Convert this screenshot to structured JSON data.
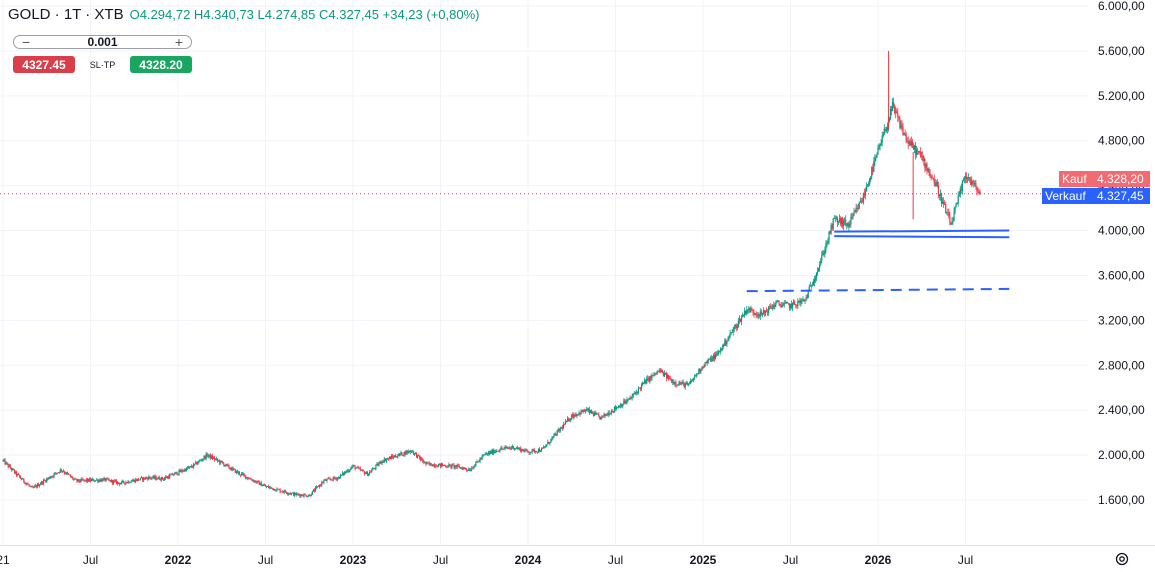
{
  "legend": {
    "symbol": "GOLD · 1T · XTB",
    "open": "O4.294,72",
    "high": "H4.340,73",
    "low": "L4.274,85",
    "close": "C4.327,45",
    "change": "+34,23 (+0,80%)"
  },
  "order_panel": {
    "quantity": "0.001",
    "minus": "−",
    "plus": "+",
    "sell_price": "4327.45",
    "sltp": "SL·TP",
    "buy_price": "4328.20"
  },
  "price_tags": {
    "buy_label": "Kauf",
    "buy_value": "4.328,20",
    "sell_label": "Verkauf",
    "sell_value": "4.327,45"
  },
  "colors": {
    "up": "#089981",
    "down": "#f23645",
    "trendline": "#2962ff",
    "buy_tag": "#f26b73",
    "sell_tag": "#2962ff",
    "grid": "#f0f3fa"
  },
  "icons": {
    "settings": "settings-gear-icon"
  },
  "chart_data": {
    "type": "candlestick",
    "symbol": "GOLD",
    "interval": "1T",
    "y_axis": {
      "side": "right",
      "ylim": [
        1200,
        6000
      ],
      "ticks": [
        1600,
        2000,
        2400,
        2800,
        3200,
        3600,
        4000,
        4400,
        4800,
        5200,
        5600,
        6000
      ],
      "tick_labels": [
        "1.600,00",
        "2.000,00",
        "2.400,00",
        "2.800,00",
        "3.200,00",
        "3.600,00",
        "4.000,00",
        "4.400,00",
        "4.800,00",
        "5.200,00",
        "5.600,00",
        "6.000,00"
      ]
    },
    "x_axis": {
      "ticks": [
        "2021-01",
        "2021-07",
        "2022-01",
        "2022-07",
        "2023-01",
        "2023-07",
        "2024-01",
        "2024-07",
        "2025-01",
        "2025-07",
        "2026-01",
        "2026-07"
      ],
      "tick_labels": [
        "21",
        "Jul",
        "2022",
        "Jul",
        "2023",
        "Jul",
        "2024",
        "Jul",
        "2025",
        "Jul",
        "2026",
        "Jul"
      ],
      "xlim": [
        "2021-01",
        "2027-02"
      ]
    },
    "grid": true,
    "price_path": [
      [
        "2021-01",
        1950
      ],
      [
        "2021-02",
        1820
      ],
      [
        "2021-03",
        1700
      ],
      [
        "2021-05",
        1870
      ],
      [
        "2021-06",
        1770
      ],
      [
        "2021-08",
        1780
      ],
      [
        "2021-09",
        1750
      ],
      [
        "2021-11",
        1800
      ],
      [
        "2021-12",
        1790
      ],
      [
        "2022-02",
        1900
      ],
      [
        "2022-03",
        2000
      ],
      [
        "2022-04",
        1930
      ],
      [
        "2022-05",
        1850
      ],
      [
        "2022-07",
        1720
      ],
      [
        "2022-09",
        1650
      ],
      [
        "2022-10",
        1640
      ],
      [
        "2022-11",
        1770
      ],
      [
        "2022-12",
        1800
      ],
      [
        "2023-01",
        1900
      ],
      [
        "2023-02",
        1830
      ],
      [
        "2023-03",
        1950
      ],
      [
        "2023-05",
        2040
      ],
      [
        "2023-06",
        1920
      ],
      [
        "2023-08",
        1900
      ],
      [
        "2023-09",
        1870
      ],
      [
        "2023-10",
        2000
      ],
      [
        "2023-11",
        2050
      ],
      [
        "2023-12",
        2070
      ],
      [
        "2024-01",
        2030
      ],
      [
        "2024-02",
        2050
      ],
      [
        "2024-03",
        2200
      ],
      [
        "2024-04",
        2350
      ],
      [
        "2024-05",
        2400
      ],
      [
        "2024-06",
        2330
      ],
      [
        "2024-07",
        2420
      ],
      [
        "2024-08",
        2500
      ],
      [
        "2024-09",
        2650
      ],
      [
        "2024-10",
        2750
      ],
      [
        "2024-11",
        2650
      ],
      [
        "2024-12",
        2620
      ],
      [
        "2025-01",
        2800
      ],
      [
        "2025-02",
        2900
      ],
      [
        "2025-03",
        3100
      ],
      [
        "2025-04",
        3300
      ],
      [
        "2025-05",
        3250
      ],
      [
        "2025-06",
        3350
      ],
      [
        "2025-07",
        3330
      ],
      [
        "2025-08",
        3380
      ],
      [
        "2025-09",
        3700
      ],
      [
        "2025-10",
        4100
      ],
      [
        "2025-11",
        4050
      ],
      [
        "2025-12",
        4300
      ],
      [
        "2026-01",
        4700
      ],
      [
        "2026-02",
        5100
      ],
      [
        "2026-03",
        4800
      ],
      [
        "2026-04",
        4650
      ],
      [
        "2026-05",
        4400
      ],
      [
        "2026-06",
        4050
      ],
      [
        "2026-07",
        4500
      ],
      [
        "2026-08",
        4327.45
      ]
    ],
    "extremes": {
      "high": 5600,
      "high_date": "2026-02",
      "low": 4100,
      "low_date": "2026-03"
    },
    "last_price": 4327.45,
    "trendlines": [
      {
        "style": "solid",
        "from": [
          "2025-10",
          3990
        ],
        "to": [
          "2026-10",
          4000
        ]
      },
      {
        "style": "solid",
        "from": [
          "2025-10",
          3950
        ],
        "to": [
          "2026-10",
          3940
        ]
      },
      {
        "style": "dashed",
        "from": [
          "2025-04",
          3460
        ],
        "to": [
          "2026-10",
          3480
        ]
      }
    ]
  }
}
